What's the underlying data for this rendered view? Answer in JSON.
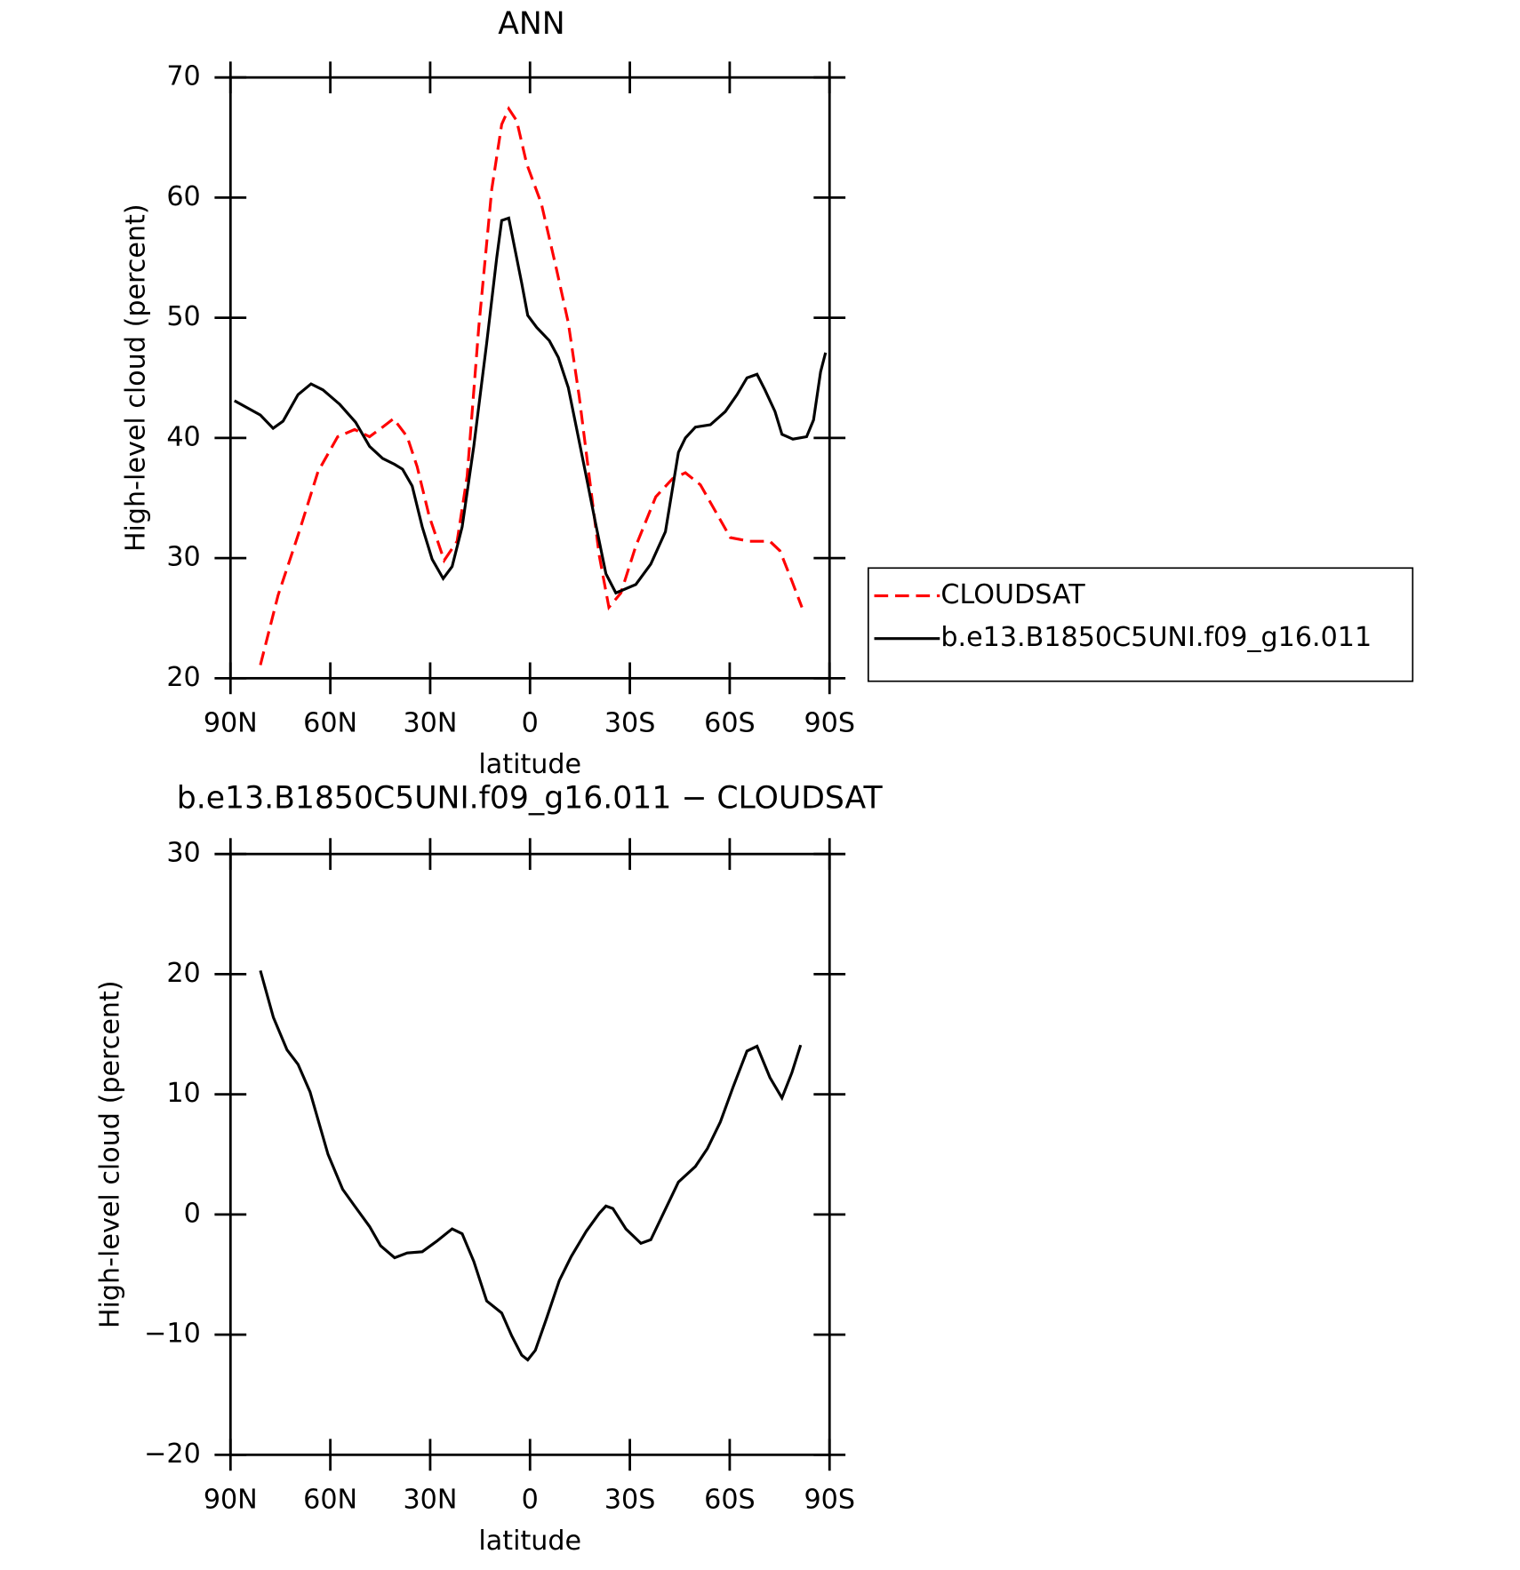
{
  "chart_data": [
    {
      "type": "line",
      "title": "ANN",
      "xlabel": "latitude",
      "ylabel": "High-level cloud (percent)",
      "xlim": [
        90,
        -90
      ],
      "ylim": [
        20,
        70
      ],
      "xticks": [
        {
          "value": 90,
          "label": "90N"
        },
        {
          "value": 60,
          "label": "60N"
        },
        {
          "value": 30,
          "label": "30N"
        },
        0,
        {
          "value": -30,
          "label": "30S"
        },
        {
          "value": -60,
          "label": "60S"
        },
        {
          "value": -90,
          "label": "90S"
        }
      ],
      "yticks": [
        20,
        30,
        40,
        50,
        60,
        70
      ],
      "legend": "right",
      "series": [
        {
          "name": "CLOUDSAT",
          "color": "#ff0000",
          "dash": "dashed",
          "x": [
            81,
            75.7,
            69.7,
            63.7,
            57.8,
            52.7,
            48.2,
            44.3,
            41,
            36.9,
            33.9,
            30.3,
            25.8,
            21.9,
            18.9,
            15.4,
            11.5,
            8.5,
            6.4,
            4,
            1,
            -3.4,
            -7.9,
            -11.5,
            -14.8,
            -17.8,
            -20.8,
            -23.7,
            -27.3,
            -31.8,
            -37.8,
            -42.8,
            -46.7,
            -51.2,
            -55.7,
            -60.2,
            -66.1,
            -72.1,
            -75.1,
            -78.7,
            -81.7
          ],
          "values": [
            21.1,
            26.9,
            31.9,
            37.2,
            40.1,
            40.7,
            40.1,
            40.9,
            41.6,
            40.1,
            37.6,
            33.5,
            29.8,
            31.4,
            36.8,
            49.2,
            60.7,
            66.1,
            67.4,
            66.4,
            62.8,
            59.5,
            54.1,
            49.6,
            43.4,
            36.8,
            30.2,
            25.9,
            27.1,
            31,
            35.1,
            36.6,
            37.1,
            36.1,
            33.9,
            31.7,
            31.4,
            31.4,
            30.6,
            28.1,
            25.9
          ]
        },
        {
          "name": "b.e13.B1850C5UNI.f09_g16.011",
          "color": "#000000",
          "dash": "solid",
          "x": [
            88.8,
            81,
            77.2,
            74.2,
            69.7,
            65.8,
            62.2,
            57.2,
            52.4,
            48.2,
            44.3,
            40.7,
            38.3,
            35.4,
            32.4,
            29.4,
            26.1,
            23.4,
            20.4,
            16.9,
            13,
            10,
            8.5,
            6.4,
            4.6,
            2.5,
            0.7,
            -2,
            -5.8,
            -8.5,
            -11.5,
            -13.9,
            -16.9,
            -19.9,
            -22.8,
            -25.8,
            -31.8,
            -36.3,
            -40.7,
            -44.6,
            -46.7,
            -49.7,
            -54.2,
            -58.7,
            -62.2,
            -65.2,
            -68.2,
            -70.6,
            -73.6,
            -75.7,
            -79,
            -83.1,
            -85.2,
            -87.3,
            -88.8
          ],
          "values": [
            43.1,
            41.9,
            40.8,
            41.4,
            43.6,
            44.5,
            44,
            42.8,
            41.3,
            39.3,
            38.3,
            37.8,
            37.4,
            36,
            32.6,
            29.9,
            28.3,
            29.3,
            32.6,
            39.3,
            47.9,
            55,
            58.1,
            58.3,
            55.8,
            52.9,
            50.2,
            49.2,
            48.1,
            46.7,
            44.2,
            40.9,
            36.8,
            32.6,
            28.7,
            27.1,
            27.8,
            29.5,
            32.2,
            38.8,
            40,
            40.9,
            41.1,
            42.2,
            43.6,
            45,
            45.3,
            44,
            42.2,
            40.3,
            39.9,
            40.1,
            41.5,
            45.5,
            47.1
          ]
        }
      ]
    },
    {
      "type": "line",
      "title": "b.e13.B1850C5UNI.f09_g16.011 − CLOUDSAT",
      "xlabel": "latitude",
      "ylabel": "High-level cloud (percent)",
      "xlim": [
        90,
        -90
      ],
      "ylim": [
        -20,
        30
      ],
      "xticks": [
        {
          "value": 90,
          "label": "90N"
        },
        {
          "value": 60,
          "label": "60N"
        },
        {
          "value": 30,
          "label": "30N"
        },
        0,
        {
          "value": -30,
          "label": "30S"
        },
        {
          "value": -60,
          "label": "60S"
        },
        {
          "value": -90,
          "label": "90S"
        }
      ],
      "yticks": [
        {
          "value": -20,
          "label": "−20"
        },
        {
          "value": -10,
          "label": "−10"
        },
        0,
        10,
        20,
        30
      ],
      "color": "#000000",
      "x": [
        81,
        77.1,
        73,
        69.7,
        66.1,
        60.7,
        56.3,
        52.7,
        48.2,
        44.9,
        40.7,
        36.9,
        32.4,
        27.9,
        23.4,
        20.4,
        16.9,
        13,
        8.5,
        5.5,
        2.5,
        0.7,
        -1.6,
        -4.9,
        -8.8,
        -12.4,
        -16.9,
        -20.8,
        -22.8,
        -24.9,
        -28.8,
        -33.3,
        -36.3,
        -40.1,
        -44.6,
        -49.7,
        -53.3,
        -57.2,
        -61,
        -65.2,
        -68.2,
        -72.1,
        -75.7,
        -78.7,
        -81.3
      ],
      "values": [
        20.3,
        16.4,
        13.7,
        12.5,
        10.2,
        5,
        2.1,
        0.7,
        -1,
        -2.6,
        -3.6,
        -3.2,
        -3.1,
        -2.2,
        -1.2,
        -1.6,
        -3.9,
        -7.2,
        -8.2,
        -10.1,
        -11.7,
        -12.1,
        -11.3,
        -8.7,
        -5.5,
        -3.5,
        -1.4,
        0.1,
        0.7,
        0.5,
        -1.2,
        -2.4,
        -2.1,
        0.1,
        2.7,
        4,
        5.5,
        7.7,
        10.6,
        13.6,
        14,
        11.4,
        9.7,
        11.8,
        14.1
      ]
    }
  ]
}
